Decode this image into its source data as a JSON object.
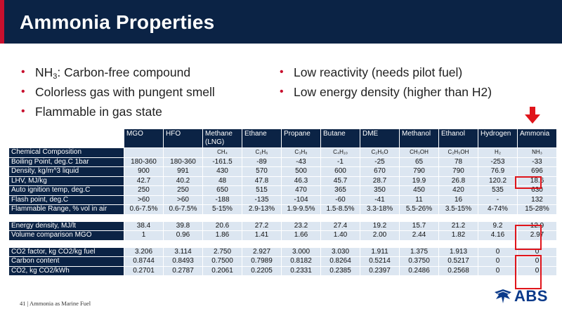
{
  "title": "Ammonia Properties",
  "bullets_left": [
    {
      "pre": "NH",
      "sub": "3",
      "post": ": Carbon-free compound"
    },
    {
      "pre": "Colorless gas with pungent smell",
      "sub": "",
      "post": ""
    },
    {
      "pre": "Flammable in gas state",
      "sub": "",
      "post": ""
    }
  ],
  "bullets_right": [
    {
      "pre": "Low reactivity (needs pilot fuel)",
      "sub": "",
      "post": ""
    },
    {
      "pre": "Low energy density (higher than H2)",
      "sub": "",
      "post": ""
    }
  ],
  "bullet_symbol": "•",
  "table": {
    "columns": [
      "MGO",
      "HFO",
      "Methane (LNG)",
      "Ethane",
      "Propane",
      "Butane",
      "DME",
      "Methanol",
      "Ethanol",
      "Hydrogen",
      "Ammonia"
    ],
    "group1": [
      {
        "label": "Chemical Composition",
        "values": [
          "",
          "",
          "CH₄",
          "C₂H₆",
          "C₃H₈",
          "C₄H₁₀",
          "C₂H₆O",
          "CH₃OH",
          "C₂H₅OH",
          "H₂",
          "NH₃"
        ]
      },
      {
        "label": "Boiling Point, deg.C 1bar",
        "values": [
          "180-360",
          "180-360",
          "-161.5",
          "-89",
          "-43",
          "-1",
          "-25",
          "65",
          "78",
          "-253",
          "-33"
        ]
      },
      {
        "label": "Density, kg/m^3 liquid",
        "values": [
          "900",
          "991",
          "430",
          "570",
          "500",
          "600",
          "670",
          "790",
          "790",
          "76.9",
          "696"
        ]
      },
      {
        "label": "LHV, MJ/kg",
        "values": [
          "42.7",
          "40.2",
          "48",
          "47.8",
          "46.3",
          "45.7",
          "28.7",
          "19.9",
          "26.8",
          "120.2",
          "18.6"
        ]
      },
      {
        "label": "Auto ignition temp, deg.C",
        "values": [
          "250",
          "250",
          "650",
          "515",
          "470",
          "365",
          "350",
          "450",
          "420",
          "535",
          "630"
        ]
      },
      {
        "label": "Flash point, deg.C",
        "values": [
          ">60",
          ">60",
          "-188",
          "-135",
          "-104",
          "-60",
          "-41",
          "11",
          "16",
          "-",
          "132"
        ]
      },
      {
        "label": "Flammable Range, % vol in air",
        "values": [
          "0.6-7.5%",
          "0.6-7.5%",
          "5-15%",
          "2.9-13%",
          "1.9-9.5%",
          "1.5-8.5%",
          "3.3-18%",
          "5.5-26%",
          "3.5-15%",
          "4-74%",
          "15-28%"
        ]
      }
    ],
    "group2": [
      {
        "label": "Energy density, MJ/lt",
        "values": [
          "38.4",
          "39.8",
          "20.6",
          "27.2",
          "23.2",
          "27.4",
          "19.2",
          "15.7",
          "21.2",
          "9.2",
          "12.9"
        ]
      },
      {
        "label": "Volume comparison MGO",
        "values": [
          "1",
          "0.96",
          "1.86",
          "1.41",
          "1.66",
          "1.40",
          "2.00",
          "2.44",
          "1.82",
          "4.16",
          "2.97"
        ]
      }
    ],
    "group3": [
      {
        "label": "CO2 factor, kg CO2/kg fuel",
        "values": [
          "3.206",
          "3.114",
          "2.750",
          "2.927",
          "3.000",
          "3.030",
          "1.911",
          "1.375",
          "1.913",
          "0",
          "0"
        ]
      },
      {
        "label": "Carbon content",
        "values": [
          "0.8744",
          "0.8493",
          "0.7500",
          "0.7989",
          "0.8182",
          "0.8264",
          "0.5214",
          "0.3750",
          "0.5217",
          "0",
          "0"
        ]
      },
      {
        "label": "CO2, kg CO2/kWh",
        "values": [
          "0.2701",
          "0.2787",
          "0.2061",
          "0.2205",
          "0.2331",
          "0.2385",
          "0.2397",
          "0.2486",
          "0.2568",
          "0",
          "0"
        ]
      }
    ]
  },
  "footer": {
    "page": "41",
    "sep": "|",
    "text": "Ammonia as Marine Fuel"
  },
  "logo": {
    "text": "ABS"
  },
  "colors": {
    "navy": "#0b2345",
    "accent_red": "#c8102e",
    "highlight": "#e0151b",
    "cell": "#dce6f1"
  }
}
